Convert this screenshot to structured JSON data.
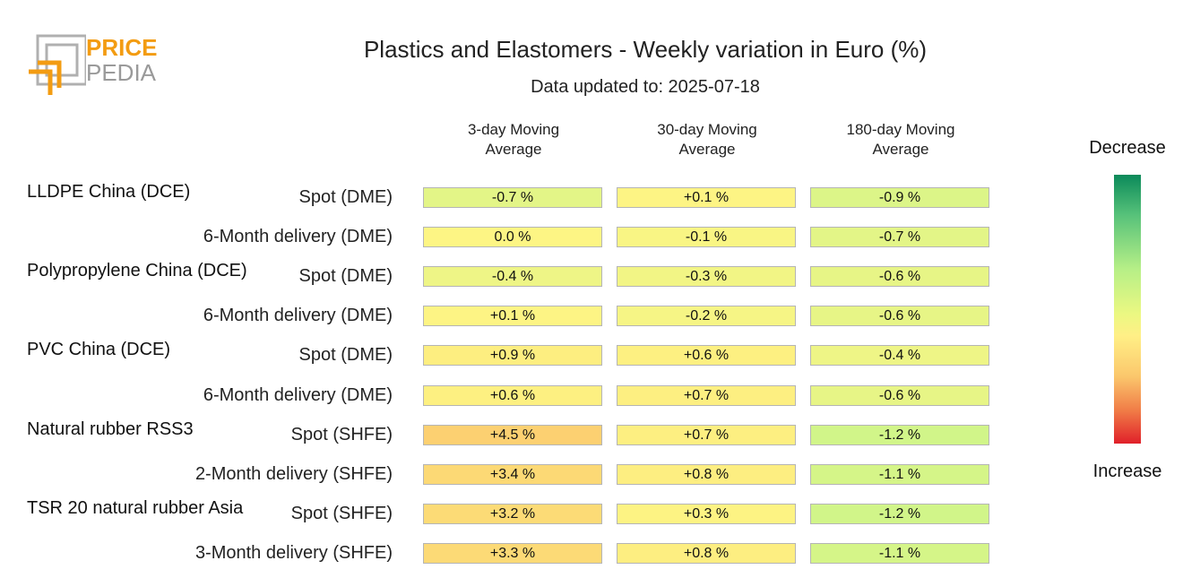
{
  "logo": {
    "line1": "PRICE",
    "line2": "PEDIA"
  },
  "title": "Plastics and Elastomers - Weekly variation in Euro (%)",
  "subtitle": "Data updated to: 2025-07-18",
  "legend": {
    "top_label": "Decrease",
    "bottom_label": "Increase"
  },
  "chart_data": {
    "type": "heatmap",
    "title": "Plastics and Elastomers - Weekly variation in Euro (%)",
    "subtitle": "Data updated to: 2025-07-18",
    "columns": [
      {
        "line1": "3-day Moving",
        "line2": "Average"
      },
      {
        "line1": "30-day Moving",
        "line2": "Average"
      },
      {
        "line1": "180-day Moving",
        "line2": "Average"
      }
    ],
    "groups": [
      "LLDPE China (DCE)",
      "Polypropylene China (DCE)",
      "PVC China (DCE)",
      "Natural rubber RSS3",
      "TSR 20 natural rubber Asia"
    ],
    "rows": [
      {
        "group": "LLDPE China (DCE)",
        "label": "Spot (DME)",
        "labels": [
          "-0.7 %",
          "+0.1 %",
          "-0.9 %"
        ],
        "values": [
          -0.7,
          0.1,
          -0.9
        ]
      },
      {
        "group": "",
        "label": "6-Month delivery (DME)",
        "labels": [
          "0.0 %",
          "-0.1 %",
          "-0.7 %"
        ],
        "values": [
          0.0,
          -0.1,
          -0.7
        ]
      },
      {
        "group": "Polypropylene China (DCE)",
        "label": "Spot (DME)",
        "labels": [
          "-0.4 %",
          "-0.3 %",
          "-0.6 %"
        ],
        "values": [
          -0.4,
          -0.3,
          -0.6
        ]
      },
      {
        "group": "",
        "label": "6-Month delivery (DME)",
        "labels": [
          "+0.1 %",
          "-0.2 %",
          "-0.6 %"
        ],
        "values": [
          0.1,
          -0.2,
          -0.6
        ]
      },
      {
        "group": "PVC China (DCE)",
        "label": "Spot (DME)",
        "labels": [
          "+0.9 %",
          "+0.6 %",
          "-0.4 %"
        ],
        "values": [
          0.9,
          0.6,
          -0.4
        ]
      },
      {
        "group": "",
        "label": "6-Month delivery (DME)",
        "labels": [
          "+0.6 %",
          "+0.7 %",
          "-0.6 %"
        ],
        "values": [
          0.6,
          0.7,
          -0.6
        ]
      },
      {
        "group": "Natural rubber RSS3",
        "label": "Spot (SHFE)",
        "labels": [
          "+4.5 %",
          "+0.7 %",
          "-1.2 %"
        ],
        "values": [
          4.5,
          0.7,
          -1.2
        ]
      },
      {
        "group": "",
        "label": "2-Month delivery (SHFE)",
        "labels": [
          "+3.4 %",
          "+0.8 %",
          "-1.1 %"
        ],
        "values": [
          3.4,
          0.8,
          -1.1
        ]
      },
      {
        "group": "TSR 20 natural rubber Asia",
        "label": "Spot (SHFE)",
        "labels": [
          "+3.2 %",
          "+0.3 %",
          "-1.2 %"
        ],
        "values": [
          3.2,
          0.3,
          -1.2
        ]
      },
      {
        "group": "",
        "label": "3-Month delivery (SHFE)",
        "labels": [
          "+3.3 %",
          "+0.8 %",
          "-1.1 %"
        ],
        "values": [
          3.3,
          0.8,
          -1.1
        ]
      }
    ],
    "color_scale": {
      "decrease": "#0b8a5a",
      "neutral": "#ffef86",
      "increase": "#e0202a"
    }
  }
}
